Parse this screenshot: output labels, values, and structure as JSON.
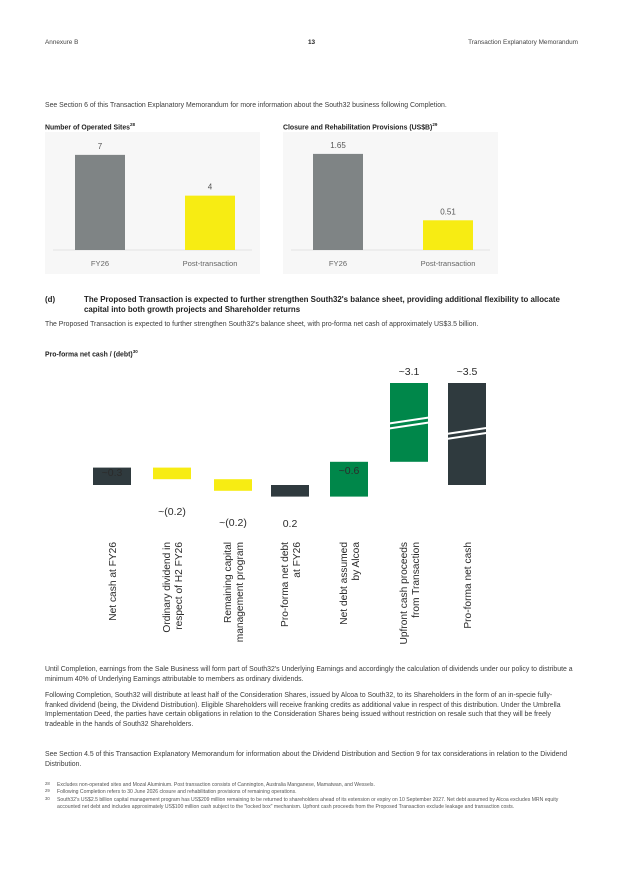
{
  "header": {
    "left": "Annexure B",
    "page_number": "13",
    "right": "Transaction Explanatory Memorandum"
  },
  "intro": "See Section 6 of this Transaction Explanatory Memorandum for more information about the South32 business following Completion.",
  "sites_chart": {
    "label": "Number of Operated Sites",
    "footnote_ref": "28",
    "chart_data": {
      "type": "bar",
      "categories": [
        "FY26",
        "Post-transaction"
      ],
      "values": [
        7,
        4
      ],
      "value_labels": [
        "7",
        "4"
      ],
      "ylim": [
        0,
        7.8
      ],
      "colors": [
        "#7f8485",
        "#f7ec13"
      ]
    }
  },
  "provisions_chart": {
    "label": "Closure and Rehabilitation Provisions (US$B)",
    "footnote_ref": "29",
    "chart_data": {
      "type": "bar",
      "categories": [
        "FY26",
        "Post-transaction"
      ],
      "values": [
        1.65,
        0.51
      ],
      "value_labels": [
        "1.65",
        "0.51"
      ],
      "ylim": [
        0,
        1.82
      ],
      "colors": [
        "#7f8485",
        "#f7ec13"
      ]
    }
  },
  "section_d": {
    "marker": "(d)",
    "heading": "The Proposed Transaction is expected to further strengthen South32's balance sheet, providing additional flexibility to allocate capital into both growth projects and Shareholder returns",
    "body": "The Proposed Transaction is expected to further strengthen South32's balance sheet, with pro-forma net cash of approximately US$3.5 billion."
  },
  "netcash_chart": {
    "label": "Pro-forma net cash / (debt)",
    "footnote_ref": "30",
    "chart_data": {
      "type": "bar",
      "subtype": "waterfall",
      "categories": [
        "Net cash at FY26",
        "Ordinary dividend in respect of H2 FY26",
        "Remaining capital management program",
        "Pro-forma net debt at FY26",
        "Net debt assumed by Alcoa",
        "Upfront cash proceeds from Transaction",
        "Pro-forma net cash"
      ],
      "category_lines": [
        [
          "Net cash at FY26"
        ],
        [
          "Ordinary dividend in",
          "respect of H2 FY26"
        ],
        [
          "Remaining capital",
          "management program"
        ],
        [
          "Pro-forma net debt",
          "at FY26"
        ],
        [
          "Net debt assumed",
          "by Alcoa"
        ],
        [
          "Upfront cash proceeds",
          "from Transaction"
        ],
        [
          "Pro-forma net cash"
        ]
      ],
      "values": [
        0.3,
        -0.2,
        -0.2,
        -0.2,
        0.6,
        3.1,
        3.5
      ],
      "value_labels": [
        "~0.3",
        "~(0.2)",
        "~(0.2)",
        "0.2",
        "~0.6",
        "~3.1",
        "~3.5"
      ],
      "axis_break_on": [
        "Upfront cash proceeds from Transaction",
        "Pro-forma net cash"
      ],
      "colors": {
        "total": "#2f3a3e",
        "decrease": "#f7ec13",
        "increase": "#00874a"
      }
    }
  },
  "paragraphs": [
    "Until Completion, earnings from the Sale Business will form part of South32's Underlying Earnings and accordingly the calculation of dividends under our policy to distribute a minimum 40% of Underlying Earnings attributable to members as ordinary dividends.",
    "Following Completion, South32 will distribute at least half of the Consideration Shares, issued by Alcoa to South32, to its Shareholders in the form of an in-specie fully-franked dividend (being, the Dividend Distribution). Eligible Shareholders will receive franking credits as additional value in respect of this distribution. Under the Umbrella Implementation Deed, the parties have certain obligations in relation to the Consideration Shares being issued without restriction on resale such that they will be freely tradeable in the hands of South32 Shareholders.",
    "See Section 4.5 of this Transaction Explanatory Memorandum for information about the Dividend Distribution and Section 9 for tax considerations in relation to the Dividend Distribution."
  ],
  "footnotes": [
    {
      "num": "28",
      "text": "Excludes non-operated sites and Mozal Aluminium. Post transaction consists of Cannington, Australia Manganese, Mamatwan, and Wessels."
    },
    {
      "num": "29",
      "text": "Following Completion refers to 30 June 2026 closure and rehabilitation provisions of remaining operations."
    },
    {
      "num": "30",
      "text": "South32's US$2.5 billion capital management program has US$209 million remaining to be returned to shareholders ahead of its extension or expiry on 10 September 2027. Net debt assumed by Alcoa excludes MRN equity accounted net debt and includes approximately US$100 million cash subject to the \"locked box\" mechanism. Upfront cash proceeds from the Proposed Transaction exclude leakage and transaction costs."
    }
  ]
}
